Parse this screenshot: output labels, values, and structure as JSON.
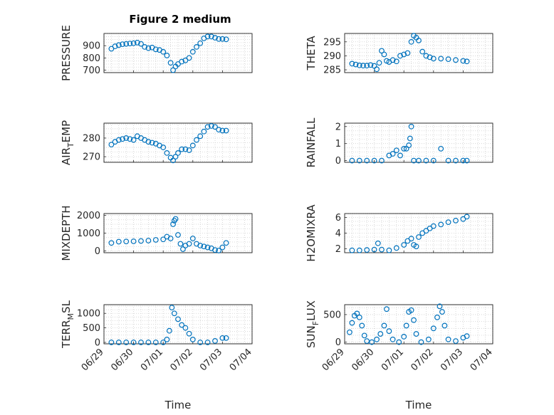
{
  "figure": {
    "title": "Figure 2 medium"
  },
  "style": {
    "marker_color": "#0072BD",
    "axis_color": "#262626",
    "grid_color": "#cfcfcf"
  },
  "chart_data": [
    {
      "type": "scatter",
      "name": "pressure",
      "ylabel": "PRESSURE",
      "xlabel": "",
      "title": "Figure 2 medium",
      "ylim": [
        680,
        1000
      ],
      "yticks": [
        700,
        800,
        900
      ],
      "ytick_labels": [
        "700",
        "800",
        "900"
      ],
      "x_range": [
        "06/29",
        "07/04"
      ],
      "grid": true,
      "points": [
        {
          "x": "06/29 06:00",
          "y": 875
        },
        {
          "x": "06/29 09:00",
          "y": 895
        },
        {
          "x": "06/29 12:00",
          "y": 905
        },
        {
          "x": "06/29 15:00",
          "y": 912
        },
        {
          "x": "06/29 18:00",
          "y": 915
        },
        {
          "x": "06/29 21:00",
          "y": 918
        },
        {
          "x": "06/30 00:00",
          "y": 920
        },
        {
          "x": "06/30 03:00",
          "y": 925
        },
        {
          "x": "06/30 06:00",
          "y": 915
        },
        {
          "x": "06/30 09:00",
          "y": 890
        },
        {
          "x": "06/30 12:00",
          "y": 880
        },
        {
          "x": "06/30 15:00",
          "y": 885
        },
        {
          "x": "06/30 18:00",
          "y": 870
        },
        {
          "x": "06/30 21:00",
          "y": 865
        },
        {
          "x": "07/01 00:00",
          "y": 850
        },
        {
          "x": "07/01 03:00",
          "y": 820
        },
        {
          "x": "07/01 06:00",
          "y": 760
        },
        {
          "x": "07/01 08:00",
          "y": 700
        },
        {
          "x": "07/01 10:00",
          "y": 730
        },
        {
          "x": "07/01 12:00",
          "y": 750
        },
        {
          "x": "07/01 15:00",
          "y": 770
        },
        {
          "x": "07/01 18:00",
          "y": 780
        },
        {
          "x": "07/01 21:00",
          "y": 800
        },
        {
          "x": "07/02 00:00",
          "y": 850
        },
        {
          "x": "07/02 03:00",
          "y": 890
        },
        {
          "x": "07/02 06:00",
          "y": 920
        },
        {
          "x": "07/02 09:00",
          "y": 960
        },
        {
          "x": "07/02 12:00",
          "y": 975
        },
        {
          "x": "07/02 15:00",
          "y": 975
        },
        {
          "x": "07/02 18:00",
          "y": 965
        },
        {
          "x": "07/02 21:00",
          "y": 955
        },
        {
          "x": "07/03 00:00",
          "y": 955
        },
        {
          "x": "07/03 03:00",
          "y": 952
        }
      ]
    },
    {
      "type": "scatter",
      "name": "theta",
      "ylabel": "THETA",
      "xlabel": "",
      "ylim": [
        284,
        298
      ],
      "yticks": [
        285,
        290,
        295
      ],
      "ytick_labels": [
        "285",
        "290",
        "295"
      ],
      "x_range": [
        "06/29",
        "07/04"
      ],
      "grid": true,
      "points": [
        {
          "x": "06/29 06:00",
          "y": 287.2
        },
        {
          "x": "06/29 09:00",
          "y": 286.9
        },
        {
          "x": "06/29 12:00",
          "y": 286.6
        },
        {
          "x": "06/29 15:00",
          "y": 286.5
        },
        {
          "x": "06/29 18:00",
          "y": 286.5
        },
        {
          "x": "06/29 21:00",
          "y": 286.7
        },
        {
          "x": "06/30 00:00",
          "y": 286.4
        },
        {
          "x": "06/30 02:00",
          "y": 285.2
        },
        {
          "x": "06/30 04:00",
          "y": 287.5
        },
        {
          "x": "06/30 06:00",
          "y": 291.8
        },
        {
          "x": "06/30 08:00",
          "y": 290.5
        },
        {
          "x": "06/30 10:00",
          "y": 288.2
        },
        {
          "x": "06/30 12:00",
          "y": 287.8
        },
        {
          "x": "06/30 15:00",
          "y": 288.5
        },
        {
          "x": "06/30 18:00",
          "y": 288.0
        },
        {
          "x": "06/30 21:00",
          "y": 290.0
        },
        {
          "x": "07/01 00:00",
          "y": 290.5
        },
        {
          "x": "07/01 03:00",
          "y": 291.0
        },
        {
          "x": "07/01 06:00",
          "y": 295.0
        },
        {
          "x": "07/01 08:00",
          "y": 297.2
        },
        {
          "x": "07/01 10:00",
          "y": 296.5
        },
        {
          "x": "07/01 12:00",
          "y": 295.5
        },
        {
          "x": "07/01 15:00",
          "y": 291.5
        },
        {
          "x": "07/01 18:00",
          "y": 290.0
        },
        {
          "x": "07/01 21:00",
          "y": 289.5
        },
        {
          "x": "07/02 00:00",
          "y": 289.0
        },
        {
          "x": "07/02 06:00",
          "y": 289.0
        },
        {
          "x": "07/02 12:00",
          "y": 288.8
        },
        {
          "x": "07/02 18:00",
          "y": 288.5
        },
        {
          "x": "07/03 00:00",
          "y": 288.2
        },
        {
          "x": "07/03 03:00",
          "y": 288.0
        }
      ]
    },
    {
      "type": "scatter",
      "name": "air_temp",
      "ylabel": "AIR_TEMP",
      "ylabel_main": "AIR",
      "ylabel_sub": "T",
      "ylabel_tail": "EMP",
      "xlabel": "",
      "ylim": [
        267,
        288
      ],
      "yticks": [
        270,
        280
      ],
      "ytick_labels": [
        "270",
        "280"
      ],
      "x_range": [
        "06/29",
        "07/04"
      ],
      "grid": true,
      "points": [
        {
          "x": "06/29 06:00",
          "y": 276.5
        },
        {
          "x": "06/29 09:00",
          "y": 278.0
        },
        {
          "x": "06/29 12:00",
          "y": 279.0
        },
        {
          "x": "06/29 15:00",
          "y": 279.5
        },
        {
          "x": "06/29 18:00",
          "y": 280.0
        },
        {
          "x": "06/29 21:00",
          "y": 279.5
        },
        {
          "x": "06/30 00:00",
          "y": 279.0
        },
        {
          "x": "06/30 03:00",
          "y": 281.0
        },
        {
          "x": "06/30 06:00",
          "y": 280.0
        },
        {
          "x": "06/30 09:00",
          "y": 279.0
        },
        {
          "x": "06/30 12:00",
          "y": 278.0
        },
        {
          "x": "06/30 15:00",
          "y": 277.5
        },
        {
          "x": "06/30 18:00",
          "y": 277.0
        },
        {
          "x": "06/30 21:00",
          "y": 276.0
        },
        {
          "x": "07/01 00:00",
          "y": 275.0
        },
        {
          "x": "07/01 03:00",
          "y": 272.0
        },
        {
          "x": "07/01 06:00",
          "y": 269.5
        },
        {
          "x": "07/01 08:00",
          "y": 268.0
        },
        {
          "x": "07/01 10:00",
          "y": 270.0
        },
        {
          "x": "07/01 12:00",
          "y": 272.0
        },
        {
          "x": "07/01 15:00",
          "y": 274.0
        },
        {
          "x": "07/01 18:00",
          "y": 274.0
        },
        {
          "x": "07/01 21:00",
          "y": 273.5
        },
        {
          "x": "07/02 00:00",
          "y": 276.0
        },
        {
          "x": "07/02 03:00",
          "y": 279.0
        },
        {
          "x": "07/02 06:00",
          "y": 281.0
        },
        {
          "x": "07/02 09:00",
          "y": 283.5
        },
        {
          "x": "07/02 12:00",
          "y": 286.0
        },
        {
          "x": "07/02 15:00",
          "y": 286.5
        },
        {
          "x": "07/02 18:00",
          "y": 286.0
        },
        {
          "x": "07/02 21:00",
          "y": 284.5
        },
        {
          "x": "07/03 00:00",
          "y": 284.0
        },
        {
          "x": "07/03 03:00",
          "y": 284.0
        }
      ]
    },
    {
      "type": "scatter",
      "name": "rainfall",
      "ylabel": "RAINFALL",
      "xlabel": "",
      "ylim": [
        -0.1,
        2.2
      ],
      "yticks": [
        0,
        1,
        2
      ],
      "ytick_labels": [
        "0",
        "1",
        "2"
      ],
      "x_range": [
        "06/29",
        "07/04"
      ],
      "grid": true,
      "points": [
        {
          "x": "06/29 06:00",
          "y": 0
        },
        {
          "x": "06/29 12:00",
          "y": 0
        },
        {
          "x": "06/29 18:00",
          "y": 0
        },
        {
          "x": "06/30 00:00",
          "y": 0
        },
        {
          "x": "06/30 06:00",
          "y": 0
        },
        {
          "x": "06/30 12:00",
          "y": 0.3
        },
        {
          "x": "06/30 15:00",
          "y": 0.4
        },
        {
          "x": "06/30 18:00",
          "y": 0.6
        },
        {
          "x": "06/30 21:00",
          "y": 0.3
        },
        {
          "x": "07/01 00:00",
          "y": 0.7
        },
        {
          "x": "07/01 02:00",
          "y": 0.7
        },
        {
          "x": "07/01 04:00",
          "y": 0.9
        },
        {
          "x": "07/01 05:00",
          "y": 1.3
        },
        {
          "x": "07/01 06:00",
          "y": 2.0
        },
        {
          "x": "07/01 08:00",
          "y": 0.0
        },
        {
          "x": "07/01 12:00",
          "y": 0
        },
        {
          "x": "07/01 18:00",
          "y": 0
        },
        {
          "x": "07/02 00:00",
          "y": 0
        },
        {
          "x": "07/02 06:00",
          "y": 0.7
        },
        {
          "x": "07/02 12:00",
          "y": 0
        },
        {
          "x": "07/02 18:00",
          "y": 0
        },
        {
          "x": "07/03 00:00",
          "y": 0
        },
        {
          "x": "07/03 03:00",
          "y": 0
        }
      ]
    },
    {
      "type": "scatter",
      "name": "mixdepth",
      "ylabel": "MIXDEPTH",
      "xlabel": "",
      "ylim": [
        -100,
        2100
      ],
      "yticks": [
        0,
        1000,
        2000
      ],
      "ytick_labels": [
        "0",
        "1000",
        "2000"
      ],
      "x_range": [
        "06/29",
        "07/04"
      ],
      "grid": true,
      "points": [
        {
          "x": "06/29 06:00",
          "y": 450
        },
        {
          "x": "06/29 12:00",
          "y": 520
        },
        {
          "x": "06/29 18:00",
          "y": 530
        },
        {
          "x": "06/30 00:00",
          "y": 540
        },
        {
          "x": "06/30 06:00",
          "y": 560
        },
        {
          "x": "06/30 12:00",
          "y": 580
        },
        {
          "x": "06/30 18:00",
          "y": 620
        },
        {
          "x": "07/01 00:00",
          "y": 650
        },
        {
          "x": "07/01 03:00",
          "y": 800
        },
        {
          "x": "07/01 06:00",
          "y": 700
        },
        {
          "x": "07/01 08:00",
          "y": 1500
        },
        {
          "x": "07/01 09:00",
          "y": 1700
        },
        {
          "x": "07/01 10:00",
          "y": 1800
        },
        {
          "x": "07/01 12:00",
          "y": 900
        },
        {
          "x": "07/01 14:00",
          "y": 400
        },
        {
          "x": "07/01 16:00",
          "y": 100
        },
        {
          "x": "07/01 18:00",
          "y": 300
        },
        {
          "x": "07/01 21:00",
          "y": 400
        },
        {
          "x": "07/02 00:00",
          "y": 700
        },
        {
          "x": "07/02 03:00",
          "y": 400
        },
        {
          "x": "07/02 06:00",
          "y": 300
        },
        {
          "x": "07/02 09:00",
          "y": 250
        },
        {
          "x": "07/02 12:00",
          "y": 200
        },
        {
          "x": "07/02 15:00",
          "y": 150
        },
        {
          "x": "07/02 18:00",
          "y": 50
        },
        {
          "x": "07/02 21:00",
          "y": 20
        },
        {
          "x": "07/03 00:00",
          "y": 200
        },
        {
          "x": "07/03 03:00",
          "y": 450
        }
      ]
    },
    {
      "type": "scatter",
      "name": "h2omixra",
      "ylabel": "H2OMIXRA",
      "xlabel": "",
      "ylim": [
        1.5,
        6.5
      ],
      "yticks": [
        2,
        4,
        6
      ],
      "ytick_labels": [
        "2",
        "4",
        "6"
      ],
      "x_range": [
        "06/29",
        "07/04"
      ],
      "grid": true,
      "points": [
        {
          "x": "06/29 06:00",
          "y": 1.8
        },
        {
          "x": "06/29 12:00",
          "y": 1.8
        },
        {
          "x": "06/29 18:00",
          "y": 1.85
        },
        {
          "x": "06/30 00:00",
          "y": 1.9
        },
        {
          "x": "06/30 03:00",
          "y": 2.7
        },
        {
          "x": "06/30 06:00",
          "y": 1.9
        },
        {
          "x": "06/30 12:00",
          "y": 1.8
        },
        {
          "x": "06/30 18:00",
          "y": 2.1
        },
        {
          "x": "07/01 00:00",
          "y": 2.5
        },
        {
          "x": "07/01 03:00",
          "y": 3.0
        },
        {
          "x": "07/01 06:00",
          "y": 3.3
        },
        {
          "x": "07/01 08:00",
          "y": 2.5
        },
        {
          "x": "07/01 10:00",
          "y": 2.3
        },
        {
          "x": "07/01 12:00",
          "y": 3.5
        },
        {
          "x": "07/01 15:00",
          "y": 4.0
        },
        {
          "x": "07/01 18:00",
          "y": 4.3
        },
        {
          "x": "07/01 21:00",
          "y": 4.6
        },
        {
          "x": "07/02 00:00",
          "y": 4.9
        },
        {
          "x": "07/02 06:00",
          "y": 5.1
        },
        {
          "x": "07/02 12:00",
          "y": 5.4
        },
        {
          "x": "07/02 18:00",
          "y": 5.6
        },
        {
          "x": "07/03 00:00",
          "y": 5.8
        },
        {
          "x": "07/03 03:00",
          "y": 6.1
        }
      ]
    },
    {
      "type": "scatter",
      "name": "terr_msl",
      "ylabel": "TERR_MSL",
      "ylabel_main": "TERR",
      "ylabel_sub": "M",
      "ylabel_tail": "SL",
      "xlabel": "Time",
      "ylim": [
        -50,
        1300
      ],
      "yticks": [
        0,
        500,
        1000
      ],
      "ytick_labels": [
        "0",
        "500",
        "1000"
      ],
      "x_range": [
        "06/29",
        "07/04"
      ],
      "grid": true,
      "xticks": [
        "06/29",
        "06/30",
        "07/01",
        "07/02",
        "07/03",
        "07/04"
      ],
      "points": [
        {
          "x": "06/29 06:00",
          "y": 0
        },
        {
          "x": "06/29 12:00",
          "y": 0
        },
        {
          "x": "06/29 18:00",
          "y": 0
        },
        {
          "x": "06/30 00:00",
          "y": 0
        },
        {
          "x": "06/30 06:00",
          "y": 0
        },
        {
          "x": "06/30 12:00",
          "y": 0
        },
        {
          "x": "06/30 18:00",
          "y": 0
        },
        {
          "x": "07/01 00:00",
          "y": 0
        },
        {
          "x": "07/01 03:00",
          "y": 100
        },
        {
          "x": "07/01 05:00",
          "y": 400
        },
        {
          "x": "07/01 07:00",
          "y": 1200
        },
        {
          "x": "07/01 09:00",
          "y": 1000
        },
        {
          "x": "07/01 12:00",
          "y": 800
        },
        {
          "x": "07/01 15:00",
          "y": 600
        },
        {
          "x": "07/01 18:00",
          "y": 500
        },
        {
          "x": "07/01 21:00",
          "y": 300
        },
        {
          "x": "07/02 00:00",
          "y": 100
        },
        {
          "x": "07/02 06:00",
          "y": 0
        },
        {
          "x": "07/02 12:00",
          "y": 0
        },
        {
          "x": "07/02 18:00",
          "y": 50
        },
        {
          "x": "07/03 00:00",
          "y": 150
        },
        {
          "x": "07/03 03:00",
          "y": 150
        }
      ]
    },
    {
      "type": "scatter",
      "name": "sun_flux",
      "ylabel": "SUN_FLUX",
      "ylabel_main": "SUN",
      "ylabel_sub": "F",
      "ylabel_tail": "LUX",
      "xlabel": "Time",
      "ylim": [
        -30,
        680
      ],
      "yticks": [
        0,
        500
      ],
      "ytick_labels": [
        "0",
        "500"
      ],
      "x_range": [
        "06/29",
        "07/04"
      ],
      "grid": true,
      "xticks": [
        "06/29",
        "06/30",
        "07/01",
        "07/02",
        "07/03",
        "07/04"
      ],
      "points": [
        {
          "x": "06/29 04:00",
          "y": 180
        },
        {
          "x": "06/29 06:00",
          "y": 350
        },
        {
          "x": "06/29 08:00",
          "y": 480
        },
        {
          "x": "06/29 10:00",
          "y": 520
        },
        {
          "x": "06/29 12:00",
          "y": 450
        },
        {
          "x": "06/29 14:00",
          "y": 300
        },
        {
          "x": "06/29 16:00",
          "y": 120
        },
        {
          "x": "06/29 18:00",
          "y": 20
        },
        {
          "x": "06/29 22:00",
          "y": 0
        },
        {
          "x": "06/30 02:00",
          "y": 50
        },
        {
          "x": "06/30 05:00",
          "y": 150
        },
        {
          "x": "06/30 08:00",
          "y": 300
        },
        {
          "x": "06/30 10:00",
          "y": 600
        },
        {
          "x": "06/30 12:00",
          "y": 200
        },
        {
          "x": "06/30 15:00",
          "y": 50
        },
        {
          "x": "06/30 20:00",
          "y": 0
        },
        {
          "x": "07/01 00:00",
          "y": 100
        },
        {
          "x": "07/01 02:00",
          "y": 300
        },
        {
          "x": "07/01 04:00",
          "y": 550
        },
        {
          "x": "07/01 06:00",
          "y": 580
        },
        {
          "x": "07/01 08:00",
          "y": 400
        },
        {
          "x": "07/01 10:00",
          "y": 150
        },
        {
          "x": "07/01 14:00",
          "y": 0
        },
        {
          "x": "07/01 20:00",
          "y": 50
        },
        {
          "x": "07/02 00:00",
          "y": 250
        },
        {
          "x": "07/02 03:00",
          "y": 450
        },
        {
          "x": "07/02 05:00",
          "y": 650
        },
        {
          "x": "07/02 07:00",
          "y": 550
        },
        {
          "x": "07/02 09:00",
          "y": 300
        },
        {
          "x": "07/02 12:00",
          "y": 50
        },
        {
          "x": "07/02 18:00",
          "y": 20
        },
        {
          "x": "07/03 00:00",
          "y": 80
        },
        {
          "x": "07/03 03:00",
          "y": 110
        }
      ]
    }
  ]
}
